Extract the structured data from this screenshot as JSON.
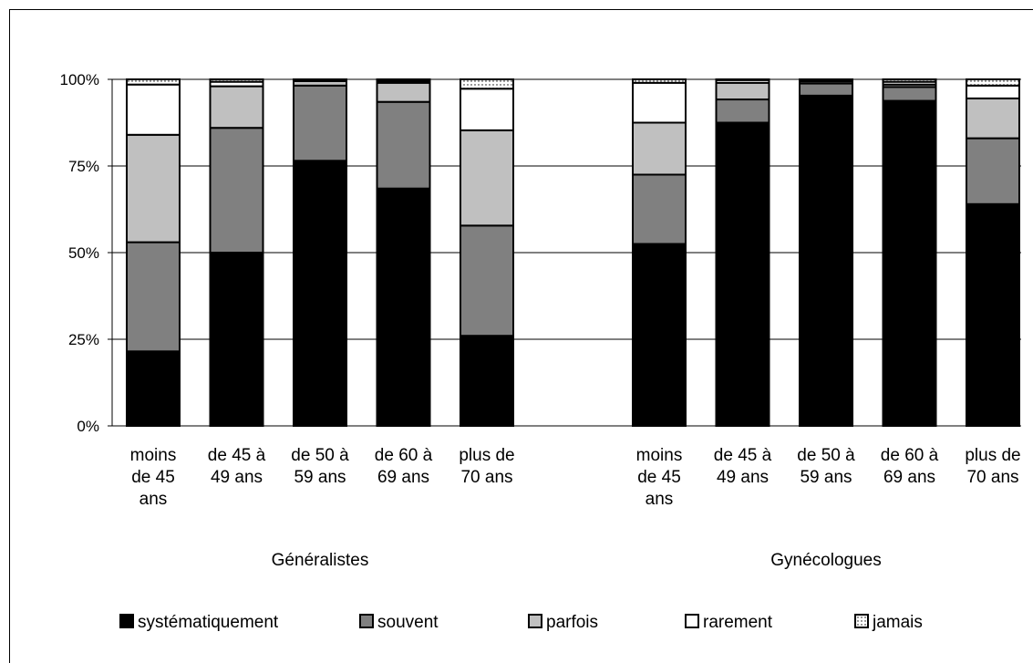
{
  "chart_data": {
    "type": "bar",
    "stacked": true,
    "percent": true,
    "ylim": [
      0,
      100
    ],
    "y_ticks": [
      "0%",
      "25%",
      "50%",
      "75%",
      "100%"
    ],
    "grid": true,
    "legend_position": "bottom",
    "groups": [
      {
        "label": "Généralistes",
        "categories": [
          [
            "moins",
            "de 45",
            "ans"
          ],
          [
            "de 45 à",
            "49 ans"
          ],
          [
            "de 50 à",
            "59 ans"
          ],
          [
            "de 60 à",
            "69 ans"
          ],
          [
            "plus de",
            "70 ans"
          ]
        ]
      },
      {
        "label": "Gynécologues",
        "categories": [
          [
            "moins",
            "de 45",
            "ans"
          ],
          [
            "de 45 à",
            "49 ans"
          ],
          [
            "de 50 à",
            "59 ans"
          ],
          [
            "de 60 à",
            "69 ans"
          ],
          [
            "plus de",
            "70 ans"
          ]
        ]
      }
    ],
    "series": [
      {
        "name": "systématiquement",
        "color": "#000000",
        "values": [
          21.5,
          50,
          76.5,
          68.5,
          26,
          52.5,
          87.5,
          95.3,
          93.8,
          64
        ]
      },
      {
        "name": "souvent",
        "color": "#808080",
        "values": [
          31.5,
          36,
          21.7,
          25,
          31.8,
          20,
          6.7,
          3.5,
          4,
          19
        ]
      },
      {
        "name": "parfois",
        "color": "#c0c0c0",
        "values": [
          31,
          12,
          1.3,
          5.5,
          27.5,
          15,
          4.8,
          0.6,
          0.7,
          11.5
        ]
      },
      {
        "name": "rarement",
        "color": "#ffffff",
        "values": [
          14.5,
          1.3,
          0.3,
          0.5,
          12,
          11.5,
          0.8,
          0.3,
          0.8,
          3.7
        ]
      },
      {
        "name": "jamais",
        "color": "#ffffff",
        "pattern": "dotted",
        "values": [
          1.5,
          0.7,
          0.2,
          0.5,
          2.7,
          1,
          0.2,
          0.3,
          0.7,
          1.8
        ]
      }
    ]
  }
}
